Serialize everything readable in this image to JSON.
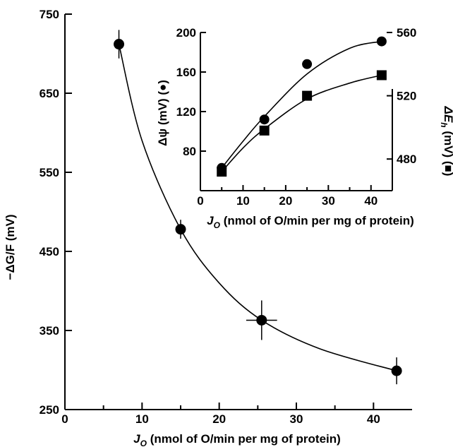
{
  "chart_data": [
    {
      "type": "scatter",
      "title": "",
      "xlabel": "J_O (nmol of O/min per mg of protein)",
      "ylabel": "−ΔG/F (mV)",
      "xlim": [
        0,
        45
      ],
      "ylim": [
        250,
        750
      ],
      "x_ticks": [
        0,
        10,
        20,
        30,
        40
      ],
      "y_ticks": [
        250,
        350,
        450,
        550,
        650,
        750
      ],
      "series": [
        {
          "marker": "circle",
          "points": [
            {
              "x": 7,
              "y": 712,
              "yerr": 18,
              "xerr": 0
            },
            {
              "x": 15,
              "y": 478,
              "yerr": 12,
              "xerr": 0
            },
            {
              "x": 25.5,
              "y": 363,
              "yerr": 25,
              "xerr": 2
            },
            {
              "x": 43,
              "y": 299,
              "yerr": 17,
              "xerr": 0
            }
          ]
        }
      ],
      "fit_curve": true
    },
    {
      "type": "scatter",
      "title": "",
      "xlabel": "J_O (nmol of O/min per mg of protein)",
      "ylabel_left": "Δψ (mV) (●)",
      "ylabel_right": "ΔE_h (mV) (■)",
      "xlim": [
        0,
        45
      ],
      "ylim_left": [
        40,
        200
      ],
      "ylim_right": [
        460,
        560
      ],
      "x_ticks": [
        0,
        10,
        20,
        30,
        40
      ],
      "y_ticks_left": [
        80,
        120,
        160,
        200
      ],
      "y_ticks_right": [
        480,
        520,
        560
      ],
      "series": [
        {
          "axis": "left",
          "marker": "circle",
          "points": [
            {
              "x": 5,
              "y": 63
            },
            {
              "x": 15,
              "y": 112
            },
            {
              "x": 25,
              "y": 168
            },
            {
              "x": 42.5,
              "y": 191
            }
          ]
        },
        {
          "axis": "right",
          "marker": "square",
          "points": [
            {
              "x": 5,
              "y": 472
            },
            {
              "x": 15,
              "y": 498
            },
            {
              "x": 25,
              "y": 520
            },
            {
              "x": 42.5,
              "y": 533
            }
          ]
        }
      ]
    }
  ]
}
